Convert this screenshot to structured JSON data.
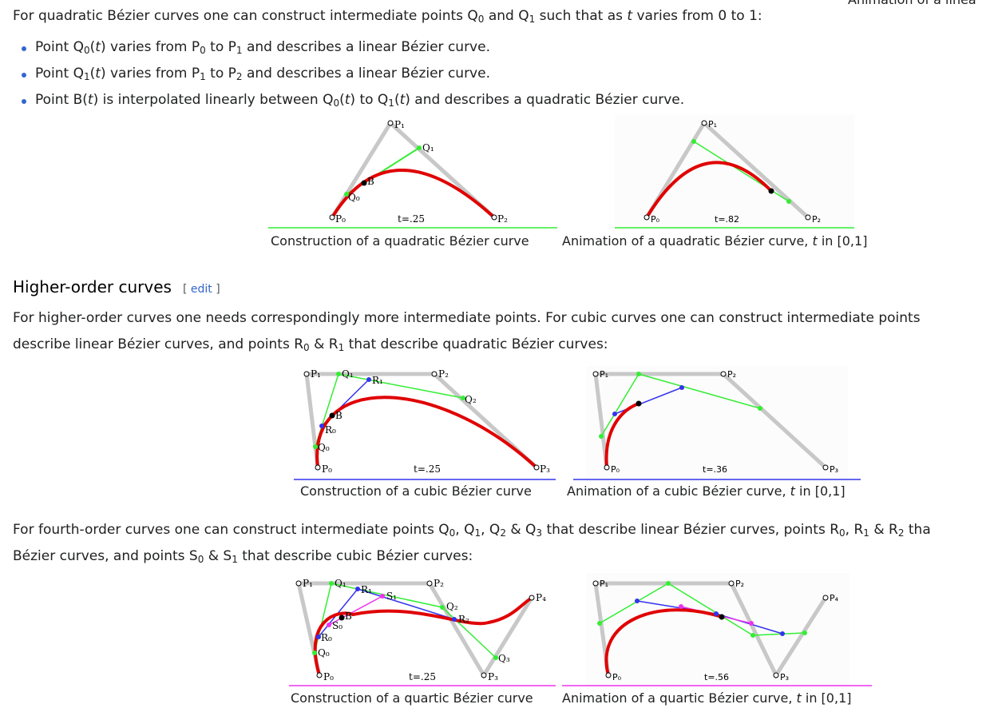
{
  "topright_caption": "Animation of a linea",
  "para_quadratic": {
    "intro": "For quadratic Bézier curves one can construct intermediate points Q",
    "bullets": [
      "Point Q0(t) varies from P0 to P1 and describes a linear Bézier curve.",
      "Point Q1(t) varies from P1 to P2 and describes a linear Bézier curve.",
      "Point B(t) is interpolated linearly between Q0(t) to Q1(t) and describes a quadratic Bézier curve."
    ]
  },
  "figures": {
    "quad_construction": {
      "caption": "Construction of a quadratic Bézier curve",
      "t_label": "t=.25"
    },
    "quad_animation": {
      "caption": "Animation of a quadratic Bézier curve, t in [0,1]",
      "t_label": "t=.82"
    },
    "cubic_construction": {
      "caption": "Construction of a cubic Bézier curve",
      "t_label": "t=.25"
    },
    "cubic_animation": {
      "caption": "Animation of a cubic Bézier curve, t in [0,1]",
      "t_label": "t=.36"
    },
    "quartic_construction": {
      "caption": "Construction of a quartic Bézier curve",
      "t_label": "t=.25"
    },
    "quartic_animation": {
      "caption": "Animation of a quartic Bézier curve, t in [0,1]",
      "t_label": "t=.56"
    }
  },
  "section": {
    "title": "Higher-order curves",
    "edit_label": "edit"
  },
  "para_higher": {
    "line1": "For higher-order curves one needs correspondingly more intermediate points. For cubic curves one can construct intermediate points",
    "line2": "describe linear Bézier curves, and points R0 & R1 that describe quadratic Bézier curves:"
  },
  "para_fourth": {
    "line1": "For fourth-order curves one can construct intermediate points Q0, Q1, Q2 & Q3 that describe linear Bézier curves, points R0, R1 & R2 tha",
    "line2": "Bézier curves, and points S0 & S1 that describe cubic Bézier curves:"
  },
  "colors": {
    "link": "#3366cc",
    "curve": "#e00000",
    "green": "#33ee33",
    "blue": "#3333ee",
    "magenta": "#ee33ee",
    "gray": "#c8c8c8"
  }
}
